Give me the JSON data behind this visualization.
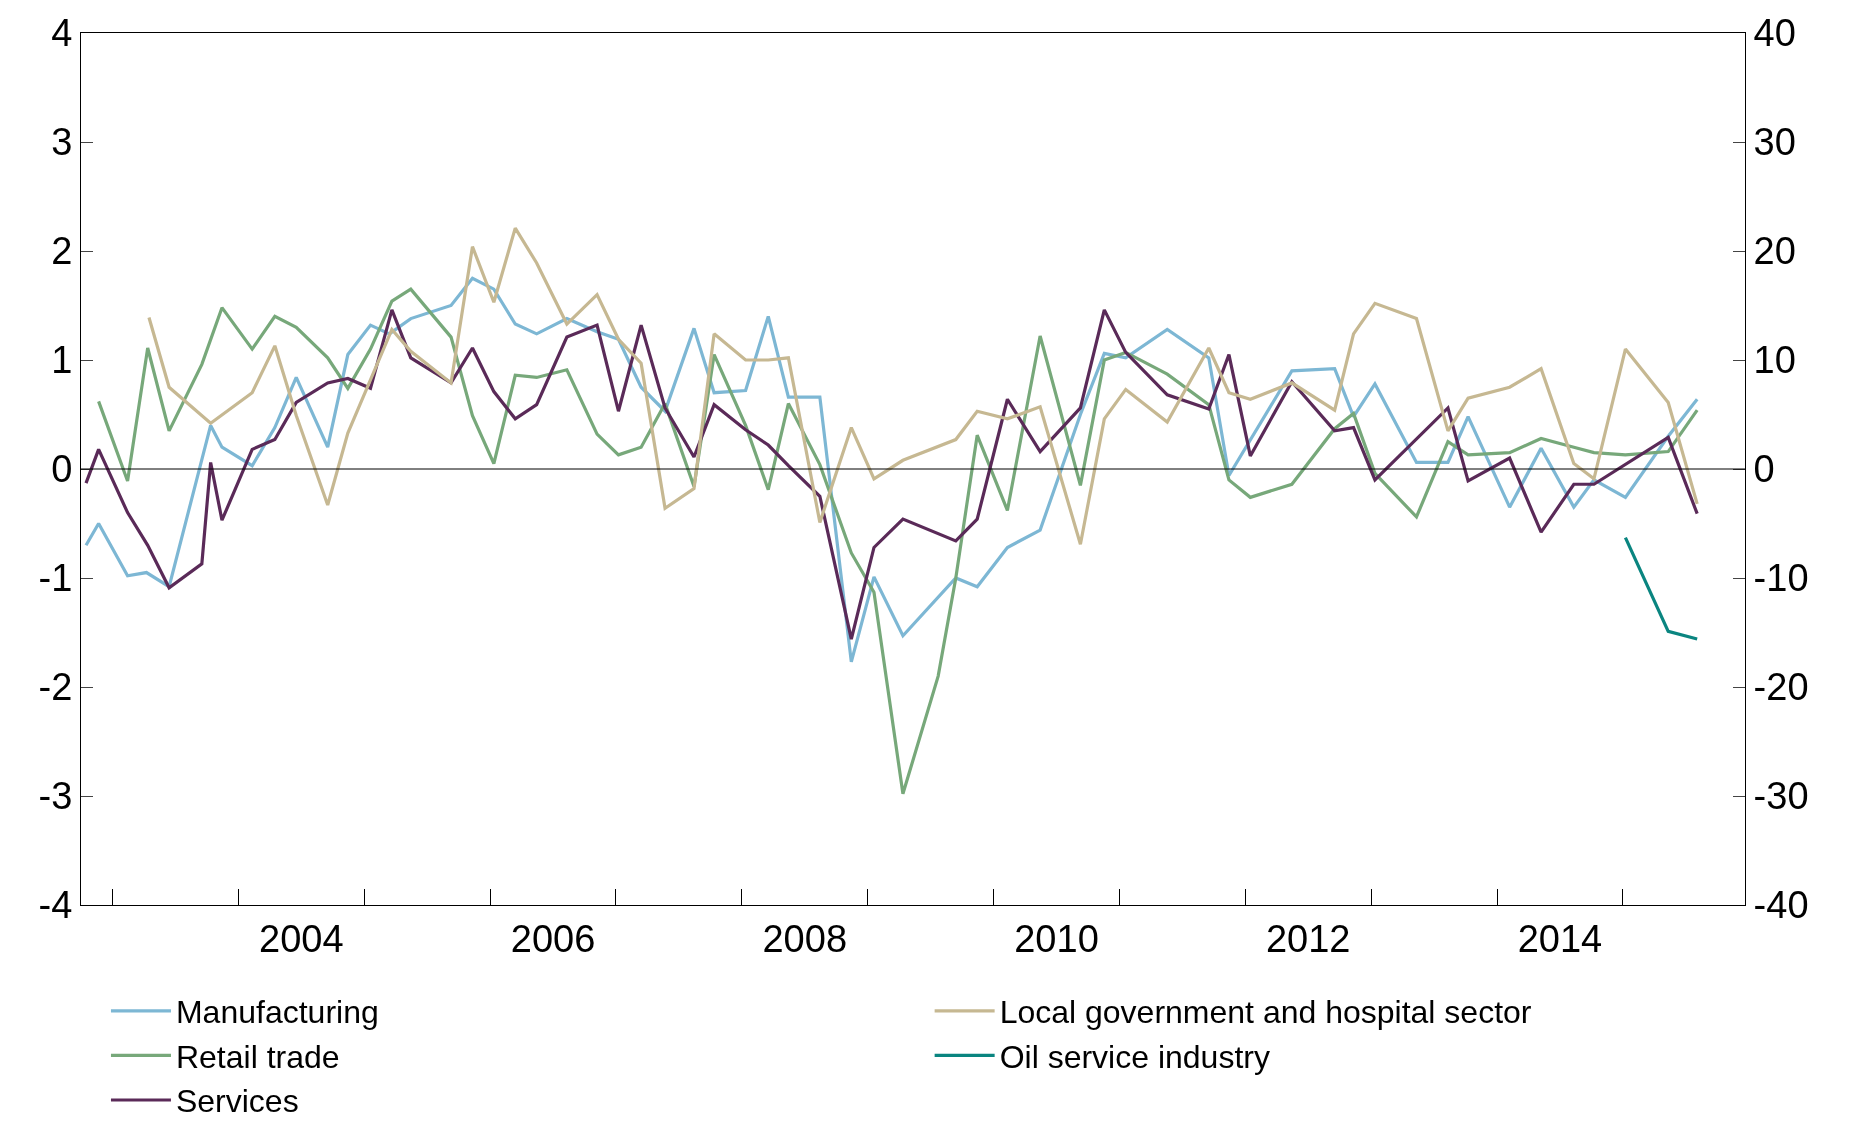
{
  "chart_data": {
    "type": "line",
    "xlim": [
      2002.75,
      2015.97
    ],
    "ylim": [
      -4,
      4
    ],
    "yticks": [
      -4,
      -3,
      -2,
      -1,
      0,
      1,
      2,
      3,
      4
    ],
    "y2lim": [
      -40,
      40
    ],
    "y2ticks": [
      -40,
      -30,
      -20,
      -10,
      0,
      10,
      20,
      30,
      40
    ],
    "xticks": [
      {
        "value": 2003,
        "label": null
      },
      {
        "value": 2004,
        "label": null
      },
      {
        "value": 2005,
        "label": null
      },
      {
        "value": 2006,
        "label": null
      },
      {
        "value": 2007,
        "label": null
      },
      {
        "value": 2008,
        "label": null
      },
      {
        "value": 2009,
        "label": null
      },
      {
        "value": 2010,
        "label": null
      },
      {
        "value": 2011,
        "label": null
      },
      {
        "value": 2012,
        "label": null
      },
      {
        "value": 2013,
        "label": null
      },
      {
        "value": 2014,
        "label": null
      },
      {
        "value": 2015,
        "label": null
      },
      {
        "value": 2004.5,
        "label": "2004"
      },
      {
        "value": 2006.5,
        "label": "2006"
      },
      {
        "value": 2008.5,
        "label": "2008"
      },
      {
        "value": 2010.5,
        "label": "2010"
      },
      {
        "value": 2012.5,
        "label": "2012"
      },
      {
        "value": 2014.5,
        "label": "2014"
      }
    ],
    "legend": "bottom",
    "line_style": "solid",
    "marker": "none",
    "ref_lines": [
      {
        "axis": "y",
        "value": 0,
        "color": "#000000"
      }
    ],
    "series": [
      {
        "name": "Manufacturing",
        "color": "#7db7d4",
        "x": [
          2002.79,
          2002.89,
          2003.12,
          2003.27,
          2003.45,
          2003.78,
          2003.87,
          2004.11,
          2004.29,
          2004.46,
          2004.71,
          2004.87,
          2005.05,
          2005.2,
          2005.37,
          2005.69,
          2005.86,
          2006.03,
          2006.2,
          2006.37,
          2006.61,
          2006.85,
          2007.02,
          2007.2,
          2007.39,
          2007.62,
          2007.78,
          2008.03,
          2008.21,
          2008.37,
          2008.62,
          2008.87,
          2009.05,
          2009.28,
          2009.7,
          2009.87,
          2010.11,
          2010.37,
          2010.69,
          2010.88,
          2011.05,
          2011.38,
          2011.71,
          2011.87,
          2012.37,
          2012.71,
          2012.86,
          2013.03,
          2013.36,
          2013.61,
          2013.77,
          2014.1,
          2014.35,
          2014.61,
          2014.77,
          2015.02,
          2015.36,
          2015.59
        ],
        "values": [
          -0.7,
          -0.5,
          -0.98,
          -0.95,
          -1.08,
          0.4,
          0.2,
          0.03,
          0.38,
          0.84,
          0.2,
          1.05,
          1.32,
          1.24,
          1.38,
          1.5,
          1.75,
          1.65,
          1.33,
          1.24,
          1.38,
          1.26,
          1.19,
          0.75,
          0.53,
          1.29,
          0.7,
          0.72,
          1.4,
          0.66,
          0.66,
          -1.77,
          -0.99,
          -1.53,
          -1.0,
          -1.08,
          -0.72,
          -0.56,
          0.5,
          1.06,
          1.02,
          1.28,
          1.02,
          -0.06,
          0.9,
          0.92,
          0.48,
          0.78,
          0.06,
          0.06,
          0.48,
          -0.35,
          0.19,
          -0.35,
          -0.1,
          -0.26,
          0.3,
          0.64
        ]
      },
      {
        "name": "Retail trade",
        "color": "#77a87a",
        "x": [
          2002.89,
          2003.12,
          2003.28,
          2003.45,
          2003.71,
          2003.87,
          2004.11,
          2004.29,
          2004.46,
          2004.71,
          2004.87,
          2005.05,
          2005.22,
          2005.37,
          2005.69,
          2005.86,
          2006.03,
          2006.2,
          2006.37,
          2006.61,
          2006.85,
          2007.02,
          2007.2,
          2007.39,
          2007.62,
          2007.78,
          2008.03,
          2008.21,
          2008.37,
          2008.62,
          2008.87,
          2009.05,
          2009.28,
          2009.56,
          2009.7,
          2009.87,
          2010.11,
          2010.37,
          2010.69,
          2010.88,
          2011.05,
          2011.38,
          2011.71,
          2011.87,
          2012.04,
          2012.37,
          2012.71,
          2012.86,
          2013.03,
          2013.36,
          2013.61,
          2013.77,
          2014.1,
          2014.35,
          2014.61,
          2014.77,
          2015.02,
          2015.36,
          2015.59
        ],
        "values": [
          0.62,
          -0.11,
          1.11,
          0.35,
          0.96,
          1.48,
          1.1,
          1.4,
          1.3,
          1.02,
          0.74,
          1.1,
          1.54,
          1.65,
          1.21,
          0.49,
          0.05,
          0.86,
          0.84,
          0.91,
          0.32,
          0.13,
          0.2,
          0.6,
          -0.16,
          1.05,
          0.4,
          -0.19,
          0.6,
          0.04,
          -0.77,
          -1.13,
          -2.98,
          -1.9,
          -1.0,
          0.31,
          -0.38,
          1.22,
          -0.15,
          1.0,
          1.07,
          0.87,
          0.59,
          -0.1,
          -0.26,
          -0.14,
          0.37,
          0.51,
          -0.04,
          -0.44,
          0.25,
          0.13,
          0.15,
          0.28,
          0.2,
          0.15,
          0.13,
          0.16,
          0.54
        ]
      },
      {
        "name": "Services",
        "color": "#5a2a58",
        "x": [
          2002.79,
          2002.89,
          2003.12,
          2003.28,
          2003.45,
          2003.71,
          2003.78,
          2003.87,
          2004.11,
          2004.29,
          2004.46,
          2004.71,
          2004.87,
          2005.05,
          2005.22,
          2005.37,
          2005.69,
          2005.86,
          2006.03,
          2006.2,
          2006.37,
          2006.61,
          2006.85,
          2007.02,
          2007.2,
          2007.39,
          2007.62,
          2007.78,
          2008.03,
          2008.21,
          2008.37,
          2008.62,
          2008.87,
          2009.05,
          2009.28,
          2009.7,
          2009.87,
          2010.11,
          2010.37,
          2010.69,
          2010.88,
          2011.05,
          2011.38,
          2011.71,
          2011.87,
          2012.04,
          2012.37,
          2012.71,
          2012.86,
          2013.03,
          2013.61,
          2013.77,
          2014.1,
          2014.35,
          2014.61,
          2014.77,
          2015.36,
          2015.59
        ],
        "values": [
          -0.13,
          0.18,
          -0.4,
          -0.7,
          -1.09,
          -0.87,
          0.06,
          -0.47,
          0.18,
          0.27,
          0.61,
          0.79,
          0.83,
          0.74,
          1.46,
          1.02,
          0.79,
          1.11,
          0.71,
          0.46,
          0.59,
          1.21,
          1.32,
          0.53,
          1.32,
          0.56,
          0.11,
          0.59,
          0.36,
          0.22,
          0.03,
          -0.25,
          -1.56,
          -0.72,
          -0.46,
          -0.66,
          -0.46,
          0.64,
          0.16,
          0.56,
          1.46,
          1.07,
          0.68,
          0.55,
          1.05,
          0.12,
          0.8,
          0.35,
          0.38,
          -0.1,
          0.56,
          -0.11,
          0.1,
          -0.58,
          -0.14,
          -0.14,
          0.29,
          -0.41
        ]
      },
      {
        "name": "Local government and hospital sector",
        "color": "#c6b892",
        "x": [
          2003.29,
          2003.45,
          2003.78,
          2004.11,
          2004.29,
          2004.46,
          2004.71,
          2004.87,
          2005.22,
          2005.37,
          2005.69,
          2005.86,
          2006.03,
          2006.2,
          2006.37,
          2006.61,
          2006.85,
          2007.02,
          2007.2,
          2007.39,
          2007.62,
          2007.78,
          2008.03,
          2008.21,
          2008.37,
          2008.62,
          2008.87,
          2009.05,
          2009.28,
          2009.7,
          2009.87,
          2010.11,
          2010.37,
          2010.69,
          2010.88,
          2011.05,
          2011.38,
          2011.71,
          2011.87,
          2012.04,
          2012.37,
          2012.71,
          2012.86,
          2013.03,
          2013.36,
          2013.61,
          2013.77,
          2014.1,
          2014.35,
          2014.61,
          2014.77,
          2015.02,
          2015.36,
          2015.59
        ],
        "values": [
          1.39,
          0.75,
          0.42,
          0.7,
          1.13,
          0.49,
          -0.33,
          0.33,
          1.28,
          1.08,
          0.79,
          2.04,
          1.53,
          2.21,
          1.89,
          1.33,
          1.6,
          1.19,
          0.97,
          -0.36,
          -0.18,
          1.24,
          1.0,
          1.0,
          1.02,
          -0.49,
          0.38,
          -0.09,
          0.08,
          0.27,
          0.53,
          0.46,
          0.57,
          -0.69,
          0.46,
          0.73,
          0.43,
          1.11,
          0.7,
          0.64,
          0.79,
          0.54,
          1.24,
          1.52,
          1.38,
          0.35,
          0.65,
          0.75,
          0.92,
          0.05,
          -0.09,
          1.1,
          0.61,
          -0.32
        ]
      },
      {
        "name": "Oil service industry",
        "color": "#0a8580",
        "axis": "y2",
        "x": [
          2015.02,
          2015.36,
          2015.59
        ],
        "values": [
          -6.3,
          -14.9,
          -15.6
        ]
      }
    ]
  }
}
